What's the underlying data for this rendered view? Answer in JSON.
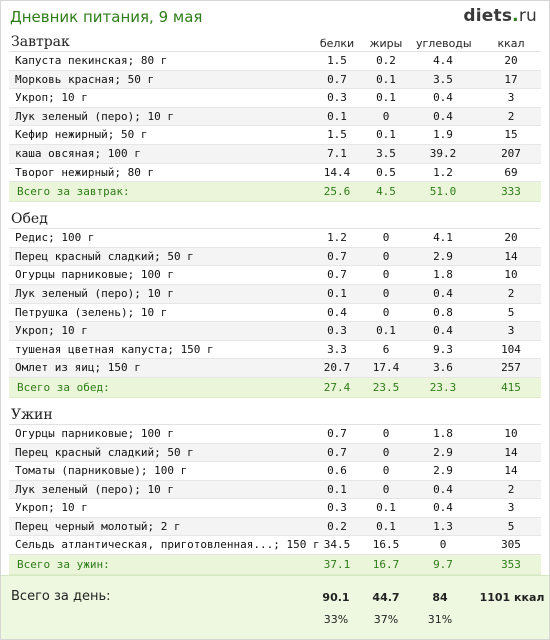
{
  "header": {
    "title": "Дневник питания, 9 мая",
    "logo_name": "diets",
    "logo_dot": ".",
    "logo_tld": "ru"
  },
  "columns": {
    "protein": "белки",
    "fat": "жиры",
    "carbs": "углеводы",
    "kcal": "ккал"
  },
  "meals": [
    {
      "title": "Завтрак",
      "items": [
        {
          "name": "Капуста пекинская; 80 г",
          "protein": "1.5",
          "fat": "0.2",
          "carbs": "4.4",
          "kcal": "20"
        },
        {
          "name": "Морковь красная; 50 г",
          "protein": "0.7",
          "fat": "0.1",
          "carbs": "3.5",
          "kcal": "17"
        },
        {
          "name": "Укроп; 10 г",
          "protein": "0.3",
          "fat": "0.1",
          "carbs": "0.4",
          "kcal": "3"
        },
        {
          "name": "Лук зеленый (перо); 10 г",
          "protein": "0.1",
          "fat": "0",
          "carbs": "0.4",
          "kcal": "2"
        },
        {
          "name": "Кефир нежирный; 50 г",
          "protein": "1.5",
          "fat": "0.1",
          "carbs": "1.9",
          "kcal": "15"
        },
        {
          "name": "каша овсяная; 100 г",
          "protein": "7.1",
          "fat": "3.5",
          "carbs": "39.2",
          "kcal": "207"
        },
        {
          "name": "Творог нежирный; 80 г",
          "protein": "14.4",
          "fat": "0.5",
          "carbs": "1.2",
          "kcal": "69"
        }
      ],
      "total": {
        "label": "Всего за завтрак:",
        "protein": "25.6",
        "fat": "4.5",
        "carbs": "51.0",
        "kcal": "333"
      }
    },
    {
      "title": "Обед",
      "items": [
        {
          "name": "Редис; 100 г",
          "protein": "1.2",
          "fat": "0",
          "carbs": "4.1",
          "kcal": "20"
        },
        {
          "name": "Перец красный сладкий; 50 г",
          "protein": "0.7",
          "fat": "0",
          "carbs": "2.9",
          "kcal": "14"
        },
        {
          "name": "Огурцы парниковые; 100 г",
          "protein": "0.7",
          "fat": "0",
          "carbs": "1.8",
          "kcal": "10"
        },
        {
          "name": "Лук зеленый (перо); 10 г",
          "protein": "0.1",
          "fat": "0",
          "carbs": "0.4",
          "kcal": "2"
        },
        {
          "name": "Петрушка (зелень); 10 г",
          "protein": "0.4",
          "fat": "0",
          "carbs": "0.8",
          "kcal": "5"
        },
        {
          "name": "Укроп; 10 г",
          "protein": "0.3",
          "fat": "0.1",
          "carbs": "0.4",
          "kcal": "3"
        },
        {
          "name": "тушеная цветная капуста; 150 г",
          "protein": "3.3",
          "fat": "6",
          "carbs": "9.3",
          "kcal": "104"
        },
        {
          "name": "Омлет из яиц; 150 г",
          "protein": "20.7",
          "fat": "17.4",
          "carbs": "3.6",
          "kcal": "257"
        }
      ],
      "total": {
        "label": "Всего за обед:",
        "protein": "27.4",
        "fat": "23.5",
        "carbs": "23.3",
        "kcal": "415"
      }
    },
    {
      "title": "Ужин",
      "items": [
        {
          "name": "Огурцы парниковые; 100 г",
          "protein": "0.7",
          "fat": "0",
          "carbs": "1.8",
          "kcal": "10"
        },
        {
          "name": "Перец красный сладкий; 50 г",
          "protein": "0.7",
          "fat": "0",
          "carbs": "2.9",
          "kcal": "14"
        },
        {
          "name": "Томаты (парниковые); 100 г",
          "protein": "0.6",
          "fat": "0",
          "carbs": "2.9",
          "kcal": "14"
        },
        {
          "name": "Лук зеленый (перо); 10 г",
          "protein": "0.1",
          "fat": "0",
          "carbs": "0.4",
          "kcal": "2"
        },
        {
          "name": "Укроп; 10 г",
          "protein": "0.3",
          "fat": "0.1",
          "carbs": "0.4",
          "kcal": "3"
        },
        {
          "name": "Перец черный молотый; 2 г",
          "protein": "0.2",
          "fat": "0.1",
          "carbs": "1.3",
          "kcal": "5"
        },
        {
          "name": "Сельдь атлантическая, приготовленная...; 150 г",
          "protein": "34.5",
          "fat": "16.5",
          "carbs": "0",
          "kcal": "305"
        }
      ],
      "total": {
        "label": "Всего за ужин:",
        "protein": "37.1",
        "fat": "16.7",
        "carbs": "9.7",
        "kcal": "353"
      }
    }
  ],
  "day_total": {
    "label": "Всего за день:",
    "protein": "90.1",
    "fat": "44.7",
    "carbs": "84",
    "kcal": "1101 ккал",
    "protein_pct": "33%",
    "fat_pct": "37%",
    "carbs_pct": "31%"
  }
}
